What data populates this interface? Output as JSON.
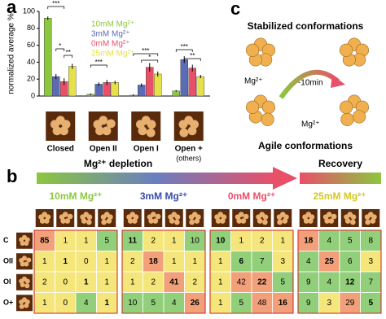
{
  "panel_labels": [
    "a",
    "b",
    "c"
  ],
  "chart_data": [
    {
      "type": "bar",
      "y_label": "normalized average %",
      "categories": [
        "Closed",
        "Open II",
        "Open I",
        "Open +"
      ],
      "category_note": "(others)",
      "ylim": [
        0,
        100
      ],
      "yticks": [
        0,
        20,
        40,
        60,
        80,
        100
      ],
      "series": [
        {
          "name": "10mM Mg²⁺",
          "color": "#8dc63f",
          "values": [
            92,
            2,
            1,
            6
          ],
          "errors": [
            2,
            1,
            1,
            1
          ]
        },
        {
          "name": "3mM Mg²⁺",
          "color": "#5b6bb5",
          "values": [
            23,
            14,
            13,
            43
          ],
          "errors": [
            3,
            2,
            2,
            4
          ]
        },
        {
          "name": "0mM Mg²⁺",
          "color": "#e8506a",
          "values": [
            17,
            16,
            34,
            33
          ],
          "errors": [
            4,
            3,
            5,
            4
          ]
        },
        {
          "name": "25mM Mg²⁺",
          "color": "#e6e04a",
          "values": [
            35,
            16,
            26,
            23
          ],
          "errors": [
            3,
            2,
            3,
            2
          ]
        }
      ],
      "significance": [
        "***",
        "*",
        "**",
        "***",
        "***",
        "*",
        "***",
        "**"
      ]
    },
    {
      "type": "heatmap",
      "title": "10mM Mg²⁺",
      "title_color": "#8dc63f",
      "values": [
        [
          85,
          1,
          1,
          5
        ],
        [
          1,
          1,
          0,
          1
        ],
        [
          2,
          0,
          1,
          1
        ],
        [
          1,
          0,
          4,
          1
        ]
      ]
    },
    {
      "type": "heatmap",
      "title": "3mM Mg²⁺",
      "title_color": "#3b4ba5",
      "values": [
        [
          11,
          2,
          1,
          10
        ],
        [
          2,
          18,
          1,
          1
        ],
        [
          1,
          2,
          41,
          2
        ],
        [
          10,
          5,
          4,
          26
        ]
      ]
    },
    {
      "type": "heatmap",
      "title": "0mM Mg²⁺",
      "title_color": "#e8506a",
      "values": [
        [
          10,
          1,
          2,
          1
        ],
        [
          1,
          6,
          7,
          3
        ],
        [
          1,
          42,
          22,
          5
        ],
        [
          1,
          5,
          48,
          16
        ]
      ]
    },
    {
      "type": "heatmap",
      "title": "25mM Mg²⁺",
      "title_color": "#d4c820",
      "values": [
        [
          18,
          4,
          5,
          8
        ],
        [
          4,
          25,
          6,
          3
        ],
        [
          9,
          4,
          12,
          7
        ],
        [
          9,
          3,
          29,
          5
        ]
      ]
    }
  ],
  "panel_b": {
    "header_left": "Mg²⁺ depletion",
    "header_right": "Recovery",
    "row_labels": [
      "C",
      "OII",
      "OI",
      "O+"
    ]
  },
  "panel_c": {
    "top": "Stabilized conformations",
    "bottom": "Agile conformations",
    "time": "~10min",
    "ion_labels": [
      "Mg²⁺",
      "Mg²⁺"
    ]
  }
}
